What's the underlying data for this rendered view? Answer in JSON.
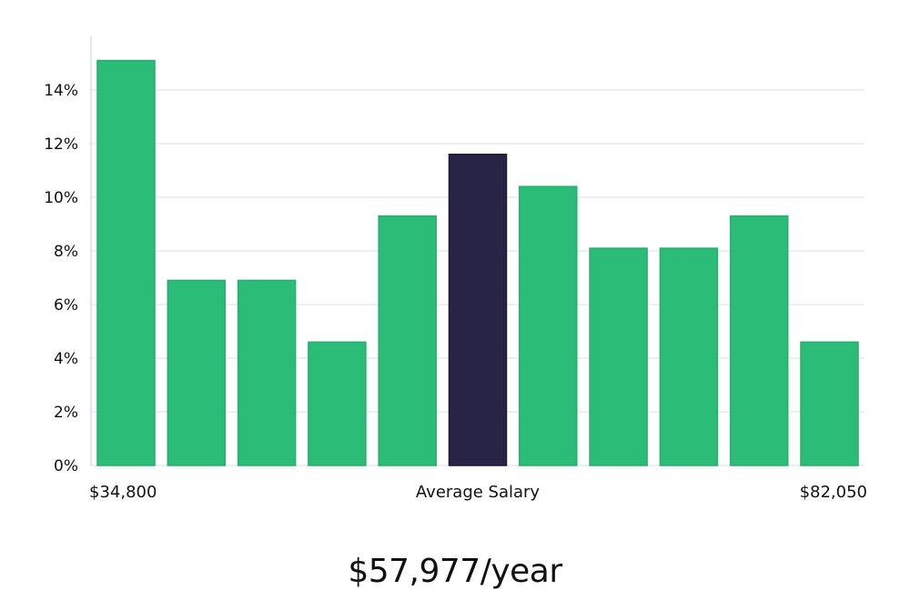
{
  "chart_data": {
    "type": "bar",
    "title": "",
    "xlabel": "",
    "ylabel": "",
    "ylim": [
      0,
      16
    ],
    "yticks": [
      0,
      2,
      4,
      6,
      8,
      10,
      12,
      14
    ],
    "ytick_labels": [
      "0%",
      "2%",
      "4%",
      "6%",
      "8%",
      "10%",
      "12%",
      "14%"
    ],
    "values": [
      15.1,
      6.9,
      6.9,
      4.6,
      9.3,
      11.6,
      10.4,
      8.1,
      8.1,
      9.3,
      4.6
    ],
    "highlight_index": 5,
    "x_labels": {
      "left": "$34,800",
      "center": "Average Salary",
      "right": "$82,050"
    },
    "grid": "horizontal",
    "colors": {
      "bar": "#2bbd77",
      "bar_highlight": "#272445",
      "grid": "#dddddd",
      "axis": "#cccccc"
    }
  },
  "salary_text": "$57,977/year"
}
